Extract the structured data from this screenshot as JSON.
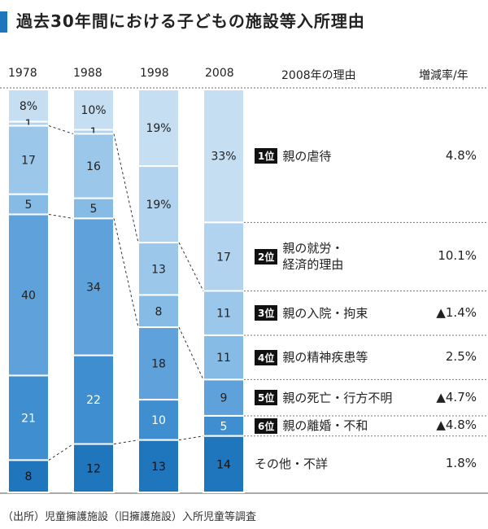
{
  "title": "過去30年間における子どもの施設等入所理由",
  "chart_data": {
    "type": "stacked-bar",
    "title": "過去30年間における子どもの施設等入所理由",
    "categories": [
      "1978",
      "1988",
      "1998",
      "2008"
    ],
    "unit": "%",
    "series": [
      {
        "name": "親の虐待",
        "values": [
          8,
          10,
          19,
          33
        ],
        "labels": [
          "8%",
          "10%",
          "19%",
          "33%"
        ]
      },
      {
        "name": "親の就労・経済的理由",
        "values": [
          1,
          1,
          19,
          17
        ],
        "labels": [
          "1",
          "1",
          "19%",
          "17"
        ]
      },
      {
        "name": "親の入院・拘束",
        "values": [
          17,
          16,
          13,
          11
        ],
        "labels": [
          "17",
          "16",
          "13",
          "11"
        ]
      },
      {
        "name": "親の精神疾患等",
        "values": [
          5,
          5,
          8,
          11
        ],
        "labels": [
          "5",
          "5",
          "8",
          "11"
        ]
      },
      {
        "name": "親の死亡・行方不明",
        "values": [
          40,
          34,
          18,
          9
        ],
        "labels": [
          "40",
          "34",
          "18",
          "9"
        ]
      },
      {
        "name": "親の離婚・不和",
        "values": [
          21,
          22,
          10,
          5
        ],
        "labels": [
          "21",
          "22",
          "10",
          "5"
        ]
      },
      {
        "name": "その他・不詳",
        "values": [
          8,
          12,
          13,
          14
        ],
        "labels": [
          "8",
          "12",
          "13",
          "14"
        ]
      }
    ],
    "colors": [
      "#c5def2",
      "#b2d3ef",
      "#9bc7ea",
      "#86bbe5",
      "#5fa2db",
      "#3f8ecf",
      "#1f76bd"
    ]
  },
  "table": {
    "header_reason": "2008年の理由",
    "header_rate": "増減率/年",
    "rows": [
      {
        "rank": "1位",
        "reason": [
          "親の虐待"
        ],
        "rate": "4.8%"
      },
      {
        "rank": "2位",
        "reason": [
          "親の就労・",
          "経済的理由"
        ],
        "rate": "10.1%"
      },
      {
        "rank": "3位",
        "reason": [
          "親の入院・拘束"
        ],
        "rate": "▲1.4%"
      },
      {
        "rank": "4位",
        "reason": [
          "親の精神疾患等"
        ],
        "rate": "2.5%"
      },
      {
        "rank": "5位",
        "reason": [
          "親の死亡・行方不明"
        ],
        "rate": "▲4.7%"
      },
      {
        "rank": "6位",
        "reason": [
          "親の離婚・不和"
        ],
        "rate": "▲4.8%"
      },
      {
        "rank": "",
        "reason": [
          "その他・不詳"
        ],
        "rate": "1.8%"
      }
    ]
  },
  "source": "（出所）児童擁護施設（旧擁護施設）入所児童等調査"
}
